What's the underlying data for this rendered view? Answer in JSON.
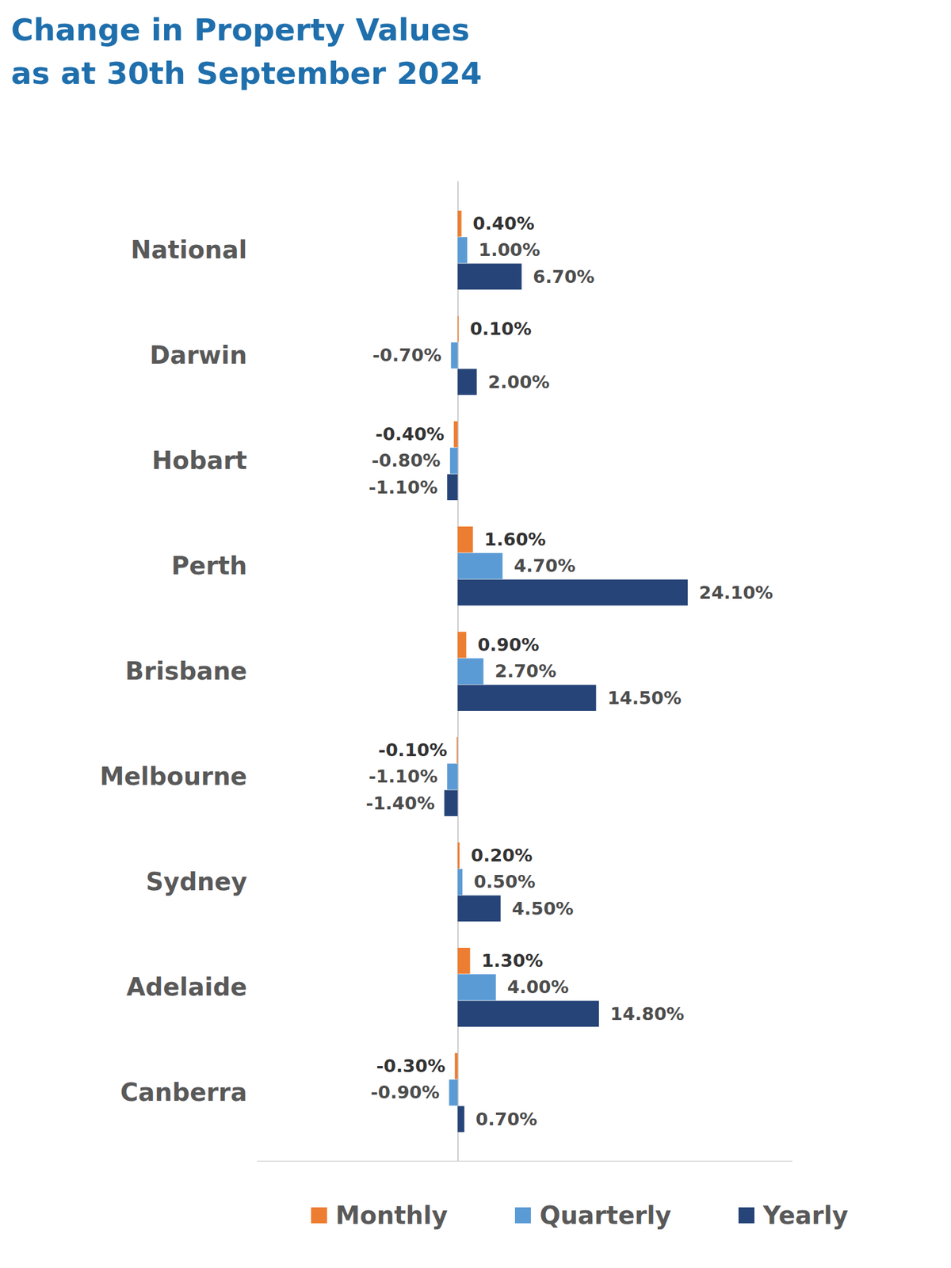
{
  "chart_data": {
    "type": "bar",
    "title": "Change in Property Values\nas at 30th September 2024",
    "orientation": "horizontal",
    "categories": [
      "National",
      "Darwin",
      "Hobart",
      "Perth",
      "Brisbane",
      "Melbourne",
      "Sydney",
      "Adelaide",
      "Canberra"
    ],
    "series": [
      {
        "name": "Monthly",
        "color": "#ED7D31",
        "values": [
          0.4,
          0.1,
          -0.4,
          1.6,
          0.9,
          -0.1,
          0.2,
          1.3,
          -0.3
        ],
        "value_labels": [
          "0.40%",
          "0.10%",
          "-0.40%",
          "1.60%",
          "0.90%",
          "-0.10%",
          "0.20%",
          "1.30%",
          "-0.30%"
        ]
      },
      {
        "name": "Quarterly",
        "color": "#5B9BD5",
        "values": [
          1.0,
          -0.7,
          -0.8,
          4.7,
          2.7,
          -1.1,
          0.5,
          4.0,
          -0.9
        ],
        "value_labels": [
          "1.00%",
          "-0.70%",
          "-0.80%",
          "4.70%",
          "2.70%",
          "-1.10%",
          "0.50%",
          "4.00%",
          "-0.90%"
        ]
      },
      {
        "name": "Yearly",
        "color": "#264478",
        "values": [
          6.7,
          2.0,
          -1.1,
          24.1,
          14.5,
          -1.4,
          4.5,
          14.8,
          0.7
        ],
        "value_labels": [
          "6.70%",
          "2.00%",
          "-1.10%",
          "24.10%",
          "14.50%",
          "-1.40%",
          "4.50%",
          "14.80%",
          "0.70%"
        ]
      }
    ],
    "xlim": [
      -21,
      35
    ],
    "xticks": [
      0
    ],
    "grid": true,
    "tick_labels": "y",
    "data_labels": true,
    "legend": "bottom"
  }
}
